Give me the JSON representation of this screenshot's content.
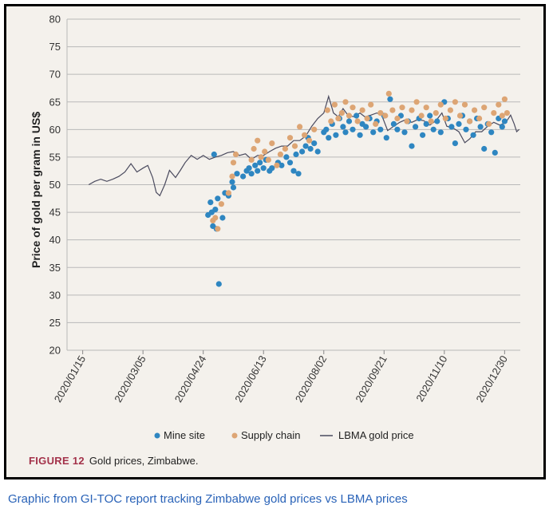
{
  "caption": "Graphic from GI-TOC report tracking Zimbabwe gold prices vs LBMA prices",
  "figure": {
    "label": "FIGURE 12",
    "title": "Gold prices, Zimbabwe."
  },
  "colors": {
    "mine_site": "#2e86c1",
    "supply_chain": "#dda574",
    "lbma": "#4a4a5e",
    "frame_bg": "#f4f1ec",
    "figure_label": "#a3324a",
    "caption": "#2a63b8"
  },
  "chart_data": {
    "type": "scatter",
    "title": "",
    "ylabel": "Price of gold per gram in US$",
    "xlabel": "",
    "ylim": [
      20,
      80
    ],
    "xlim": [
      "2020-01-02",
      "2021-01-12"
    ],
    "y_ticks": [
      20,
      25,
      30,
      35,
      40,
      45,
      50,
      55,
      60,
      65,
      70,
      75,
      80
    ],
    "x_ticks": [
      "2020/01/15",
      "2020/03/05",
      "2020/04/24",
      "2020/06/13",
      "2020/08/02",
      "2020/09/21",
      "2020/11/10",
      "2020/12/30"
    ],
    "grid": "horizontal",
    "legend": [
      "Mine site",
      "Supply chain",
      "LBMA gold price"
    ],
    "legend_position": "bottom",
    "series": [
      {
        "name": "LBMA gold price",
        "type": "line",
        "points": [
          [
            "2020-01-20",
            50.0
          ],
          [
            "2020-01-25",
            50.6
          ],
          [
            "2020-01-30",
            51.0
          ],
          [
            "2020-02-04",
            50.6
          ],
          [
            "2020-02-09",
            51.0
          ],
          [
            "2020-02-14",
            51.5
          ],
          [
            "2020-02-19",
            52.3
          ],
          [
            "2020-02-24",
            53.8
          ],
          [
            "2020-02-29",
            52.3
          ],
          [
            "2020-03-05",
            53.0
          ],
          [
            "2020-03-09",
            53.5
          ],
          [
            "2020-03-13",
            51.3
          ],
          [
            "2020-03-16",
            48.6
          ],
          [
            "2020-03-19",
            48.0
          ],
          [
            "2020-03-23",
            50.0
          ],
          [
            "2020-03-27",
            52.6
          ],
          [
            "2020-04-01",
            51.3
          ],
          [
            "2020-04-05",
            52.6
          ],
          [
            "2020-04-09",
            54.0
          ],
          [
            "2020-04-14",
            55.3
          ],
          [
            "2020-04-19",
            54.6
          ],
          [
            "2020-04-24",
            55.3
          ],
          [
            "2020-04-29",
            54.6
          ],
          [
            "2020-05-04",
            55.0
          ],
          [
            "2020-05-09",
            55.3
          ],
          [
            "2020-05-14",
            55.8
          ],
          [
            "2020-05-19",
            56.0
          ],
          [
            "2020-05-24",
            55.3
          ],
          [
            "2020-05-29",
            55.6
          ],
          [
            "2020-06-03",
            54.6
          ],
          [
            "2020-06-08",
            55.3
          ],
          [
            "2020-06-13",
            55.3
          ],
          [
            "2020-06-18",
            56.0
          ],
          [
            "2020-06-23",
            56.6
          ],
          [
            "2020-06-28",
            57.0
          ],
          [
            "2020-07-03",
            57.0
          ],
          [
            "2020-07-08",
            58.0
          ],
          [
            "2020-07-13",
            58.0
          ],
          [
            "2020-07-18",
            58.8
          ],
          [
            "2020-07-23",
            60.6
          ],
          [
            "2020-07-28",
            62.0
          ],
          [
            "2020-08-02",
            63.0
          ],
          [
            "2020-08-06",
            66.0
          ],
          [
            "2020-08-10",
            63.0
          ],
          [
            "2020-08-14",
            62.3
          ],
          [
            "2020-08-18",
            63.8
          ],
          [
            "2020-08-22",
            62.6
          ],
          [
            "2020-08-27",
            62.3
          ],
          [
            "2020-09-01",
            63.0
          ],
          [
            "2020-09-05",
            62.3
          ],
          [
            "2020-09-10",
            62.6
          ],
          [
            "2020-09-15",
            63.0
          ],
          [
            "2020-09-19",
            62.6
          ],
          [
            "2020-09-24",
            59.8
          ],
          [
            "2020-09-29",
            60.6
          ],
          [
            "2020-10-04",
            61.3
          ],
          [
            "2020-10-09",
            61.8
          ],
          [
            "2020-10-14",
            61.3
          ],
          [
            "2020-10-19",
            61.8
          ],
          [
            "2020-10-24",
            61.6
          ],
          [
            "2020-10-29",
            60.8
          ],
          [
            "2020-11-03",
            61.6
          ],
          [
            "2020-11-08",
            63.0
          ],
          [
            "2020-11-12",
            60.6
          ],
          [
            "2020-11-17",
            60.3
          ],
          [
            "2020-11-22",
            59.6
          ],
          [
            "2020-11-27",
            57.6
          ],
          [
            "2020-12-01",
            58.3
          ],
          [
            "2020-12-06",
            59.6
          ],
          [
            "2020-12-11",
            59.6
          ],
          [
            "2020-12-16",
            60.6
          ],
          [
            "2020-12-21",
            61.3
          ],
          [
            "2020-12-26",
            60.8
          ],
          [
            "2020-12-31",
            61.3
          ],
          [
            "2021-01-04",
            62.6
          ],
          [
            "2021-01-07",
            61.0
          ],
          [
            "2021-01-09",
            59.6
          ],
          [
            "2021-01-11",
            60.0
          ]
        ]
      },
      {
        "name": "Mine site",
        "type": "scatter",
        "points": [
          [
            "2020-04-28",
            44.5
          ],
          [
            "2020-04-30",
            46.8
          ],
          [
            "2020-05-01",
            45.0
          ],
          [
            "2020-05-02",
            42.5
          ],
          [
            "2020-05-03",
            55.5
          ],
          [
            "2020-05-04",
            45.5
          ],
          [
            "2020-05-05",
            42.0
          ],
          [
            "2020-05-06",
            47.5
          ],
          [
            "2020-05-07",
            32.0
          ],
          [
            "2020-05-10",
            44.0
          ],
          [
            "2020-05-12",
            48.5
          ],
          [
            "2020-05-15",
            48.0
          ],
          [
            "2020-05-18",
            50.5
          ],
          [
            "2020-05-19",
            49.5
          ],
          [
            "2020-05-22",
            52.0
          ],
          [
            "2020-05-27",
            51.5
          ],
          [
            "2020-05-30",
            52.5
          ],
          [
            "2020-06-01",
            53.0
          ],
          [
            "2020-06-03",
            52.0
          ],
          [
            "2020-06-06",
            53.5
          ],
          [
            "2020-06-08",
            52.5
          ],
          [
            "2020-06-10",
            54.0
          ],
          [
            "2020-06-13",
            53.0
          ],
          [
            "2020-06-15",
            54.5
          ],
          [
            "2020-06-18",
            52.5
          ],
          [
            "2020-06-20",
            53.0
          ],
          [
            "2020-06-25",
            54.0
          ],
          [
            "2020-06-28",
            53.5
          ],
          [
            "2020-07-02",
            55.0
          ],
          [
            "2020-07-05",
            54.0
          ],
          [
            "2020-07-08",
            52.5
          ],
          [
            "2020-07-10",
            55.5
          ],
          [
            "2020-07-12",
            52.0
          ],
          [
            "2020-07-15",
            56.0
          ],
          [
            "2020-07-18",
            57.0
          ],
          [
            "2020-07-20",
            58.5
          ],
          [
            "2020-07-22",
            56.5
          ],
          [
            "2020-07-25",
            57.5
          ],
          [
            "2020-07-28",
            56.0
          ],
          [
            "2020-08-02",
            59.5
          ],
          [
            "2020-08-04",
            60.0
          ],
          [
            "2020-08-06",
            58.5
          ],
          [
            "2020-08-09",
            61.0
          ],
          [
            "2020-08-12",
            59.0
          ],
          [
            "2020-08-15",
            62.0
          ],
          [
            "2020-08-18",
            60.5
          ],
          [
            "2020-08-20",
            59.5
          ],
          [
            "2020-08-23",
            61.5
          ],
          [
            "2020-08-26",
            60.0
          ],
          [
            "2020-08-29",
            62.5
          ],
          [
            "2020-09-01",
            59.0
          ],
          [
            "2020-09-03",
            61.0
          ],
          [
            "2020-09-06",
            60.5
          ],
          [
            "2020-09-09",
            62.0
          ],
          [
            "2020-09-12",
            59.5
          ],
          [
            "2020-09-15",
            61.5
          ],
          [
            "2020-09-18",
            60.0
          ],
          [
            "2020-09-21",
            62.5
          ],
          [
            "2020-09-23",
            58.5
          ],
          [
            "2020-09-26",
            65.5
          ],
          [
            "2020-09-29",
            61.0
          ],
          [
            "2020-10-02",
            60.0
          ],
          [
            "2020-10-05",
            62.5
          ],
          [
            "2020-10-08",
            59.5
          ],
          [
            "2020-10-11",
            61.5
          ],
          [
            "2020-10-14",
            57.0
          ],
          [
            "2020-10-17",
            60.5
          ],
          [
            "2020-10-20",
            62.0
          ],
          [
            "2020-10-23",
            59.0
          ],
          [
            "2020-10-26",
            61.0
          ],
          [
            "2020-10-29",
            62.5
          ],
          [
            "2020-11-01",
            60.0
          ],
          [
            "2020-11-04",
            61.5
          ],
          [
            "2020-11-07",
            59.5
          ],
          [
            "2020-11-10",
            65.0
          ],
          [
            "2020-11-13",
            62.0
          ],
          [
            "2020-11-16",
            60.5
          ],
          [
            "2020-11-19",
            57.5
          ],
          [
            "2020-11-22",
            61.0
          ],
          [
            "2020-11-25",
            62.5
          ],
          [
            "2020-11-28",
            60.0
          ],
          [
            "2020-12-01",
            61.5
          ],
          [
            "2020-12-04",
            59.0
          ],
          [
            "2020-12-07",
            62.0
          ],
          [
            "2020-12-10",
            60.5
          ],
          [
            "2020-12-13",
            56.5
          ],
          [
            "2020-12-16",
            61.0
          ],
          [
            "2020-12-19",
            59.5
          ],
          [
            "2020-12-22",
            55.8
          ],
          [
            "2020-12-25",
            62.0
          ],
          [
            "2020-12-28",
            60.5
          ],
          [
            "2020-12-30",
            61.5
          ]
        ]
      },
      {
        "name": "Supply chain",
        "type": "scatter",
        "points": [
          [
            "2020-05-02",
            43.5
          ],
          [
            "2020-05-04",
            44.0
          ],
          [
            "2020-05-06",
            42.0
          ],
          [
            "2020-05-09",
            46.5
          ],
          [
            "2020-05-15",
            48.5
          ],
          [
            "2020-05-18",
            51.5
          ],
          [
            "2020-05-19",
            54.0
          ],
          [
            "2020-05-21",
            55.5
          ],
          [
            "2020-06-03",
            54.5
          ],
          [
            "2020-06-05",
            56.5
          ],
          [
            "2020-06-08",
            58.0
          ],
          [
            "2020-06-11",
            55.0
          ],
          [
            "2020-06-14",
            56.0
          ],
          [
            "2020-06-17",
            54.5
          ],
          [
            "2020-06-20",
            57.5
          ],
          [
            "2020-06-24",
            53.5
          ],
          [
            "2020-06-27",
            55.5
          ],
          [
            "2020-07-01",
            56.5
          ],
          [
            "2020-07-05",
            58.5
          ],
          [
            "2020-07-09",
            57.0
          ],
          [
            "2020-07-13",
            60.5
          ],
          [
            "2020-07-17",
            59.0
          ],
          [
            "2020-07-21",
            58.0
          ],
          [
            "2020-07-25",
            60.0
          ],
          [
            "2020-08-05",
            63.5
          ],
          [
            "2020-08-08",
            61.5
          ],
          [
            "2020-08-11",
            64.5
          ],
          [
            "2020-08-14",
            62.0
          ],
          [
            "2020-08-17",
            63.0
          ],
          [
            "2020-08-20",
            65.0
          ],
          [
            "2020-08-23",
            62.5
          ],
          [
            "2020-08-26",
            64.0
          ],
          [
            "2020-08-30",
            61.5
          ],
          [
            "2020-09-03",
            63.5
          ],
          [
            "2020-09-07",
            62.0
          ],
          [
            "2020-09-10",
            64.5
          ],
          [
            "2020-09-14",
            61.0
          ],
          [
            "2020-09-18",
            63.0
          ],
          [
            "2020-09-22",
            62.5
          ],
          [
            "2020-09-25",
            66.5
          ],
          [
            "2020-09-28",
            63.5
          ],
          [
            "2020-10-02",
            62.0
          ],
          [
            "2020-10-06",
            64.0
          ],
          [
            "2020-10-10",
            61.5
          ],
          [
            "2020-10-14",
            63.5
          ],
          [
            "2020-10-18",
            65.0
          ],
          [
            "2020-10-22",
            62.5
          ],
          [
            "2020-10-26",
            64.0
          ],
          [
            "2020-10-30",
            61.5
          ],
          [
            "2020-11-03",
            63.0
          ],
          [
            "2020-11-07",
            64.5
          ],
          [
            "2020-11-11",
            62.0
          ],
          [
            "2020-11-15",
            63.5
          ],
          [
            "2020-11-19",
            65.0
          ],
          [
            "2020-11-23",
            62.5
          ],
          [
            "2020-11-27",
            64.5
          ],
          [
            "2020-12-01",
            61.5
          ],
          [
            "2020-12-05",
            63.5
          ],
          [
            "2020-12-09",
            62.0
          ],
          [
            "2020-12-13",
            64.0
          ],
          [
            "2020-12-17",
            61.0
          ],
          [
            "2020-12-21",
            63.0
          ],
          [
            "2020-12-25",
            64.5
          ],
          [
            "2020-12-28",
            62.5
          ],
          [
            "2020-12-30",
            65.5
          ],
          [
            "2021-01-01",
            63.0
          ]
        ]
      }
    ]
  }
}
